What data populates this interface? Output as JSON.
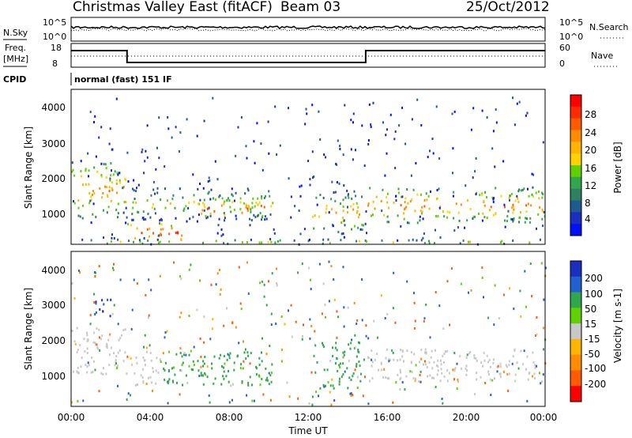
{
  "header": {
    "title": "Christmas Valley East (fitACF)",
    "beam": "Beam 03",
    "date": "25/Oct/2012"
  },
  "top_panels": {
    "nsky_label": "N.Sky",
    "nsky_ticks": [
      "10^5",
      "10^0"
    ],
    "nsearch_label": "N.Search",
    "nsearch_ticks": [
      "10^5",
      "10^0"
    ],
    "freq_label_1": "Freq.",
    "freq_label_2": "[MHz]",
    "freq_ticks": [
      "18",
      "8"
    ],
    "nave_label": "Nave",
    "nave_ticks": [
      "60",
      "0"
    ],
    "cpid_label": "CPID",
    "cpid_value": "normal (fast) 151 IF"
  },
  "axes": {
    "ylabel": "Slant Range [km]",
    "yticks": [
      "4000",
      "3000",
      "2000",
      "1000"
    ],
    "xticks": [
      "00:00",
      "04:00",
      "08:00",
      "12:00",
      "16:00",
      "20:00",
      "00:00"
    ],
    "xlabel": "Time UT"
  },
  "power_colorbar": {
    "label": "Power [dB]",
    "ticks": [
      "28",
      "24",
      "20",
      "16",
      "12",
      "8",
      "4"
    ],
    "colors": [
      "#ff0000",
      "#ff2a00",
      "#ff5a00",
      "#ff8c00",
      "#ffb400",
      "#ffd200",
      "#5fd000",
      "#2ea84a",
      "#2f8060",
      "#1f5a90",
      "#1a2fc0",
      "#0010ff"
    ]
  },
  "velocity_colorbar": {
    "label": "Velocity [m s-1]",
    "ticks": [
      "200",
      "100",
      "50",
      "15",
      "-15",
      "-50",
      "-100",
      "-200"
    ],
    "colors": [
      "#1a2fc0",
      "#2060d0",
      "#2ea84a",
      "#5fd000",
      "#c8c8c8",
      "#ffb400",
      "#ff8c00",
      "#ff5a00",
      "#ff0000"
    ]
  },
  "chart_data": {
    "type": "heatmap",
    "x_range": [
      "00:00",
      "24:00"
    ],
    "ylim": [
      180,
      4500
    ],
    "freq_mhz": [
      {
        "start": "00:00",
        "end": "02:50",
        "value": 15
      },
      {
        "start": "02:50",
        "end": "14:55",
        "value": 10
      },
      {
        "start": "14:55",
        "end": "24:00",
        "value": 15
      }
    ],
    "power_regions": [
      {
        "t0": 0.0,
        "t1": 2.8,
        "r0": 900,
        "r1": 2500,
        "db": 24
      },
      {
        "t0": 3.0,
        "t1": 10.2,
        "r0": 850,
        "r1": 1800,
        "db": 18
      },
      {
        "t0": 6.5,
        "t1": 9.8,
        "r0": 950,
        "r1": 1450,
        "db": 28
      },
      {
        "t0": 2.8,
        "t1": 6.0,
        "r0": 250,
        "r1": 800,
        "db": 28
      },
      {
        "t0": 12.2,
        "t1": 14.8,
        "r0": 500,
        "r1": 1700,
        "db": 22
      },
      {
        "t0": 15.0,
        "t1": 24.0,
        "r0": 800,
        "r1": 1800,
        "db": 24
      },
      {
        "t0": 0.0,
        "t1": 24.0,
        "r0": 200,
        "r1": 350,
        "db": 18
      }
    ],
    "velocity_regions": [
      {
        "t0": 0.0,
        "t1": 2.8,
        "r0": 1100,
        "r1": 2400,
        "v": 0
      },
      {
        "t0": 1.2,
        "t1": 2.4,
        "r0": 2700,
        "r1": 3200,
        "v": 150
      },
      {
        "t0": 3.0,
        "t1": 4.5,
        "r0": 800,
        "r1": 1800,
        "v": 0
      },
      {
        "t0": 4.5,
        "t1": 10.2,
        "r0": 800,
        "r1": 1800,
        "v": 40
      },
      {
        "t0": 12.2,
        "t1": 14.8,
        "r0": 700,
        "r1": 2000,
        "v": 40
      },
      {
        "t0": 15.0,
        "t1": 24.0,
        "r0": 900,
        "r1": 1800,
        "v": 0
      }
    ]
  }
}
